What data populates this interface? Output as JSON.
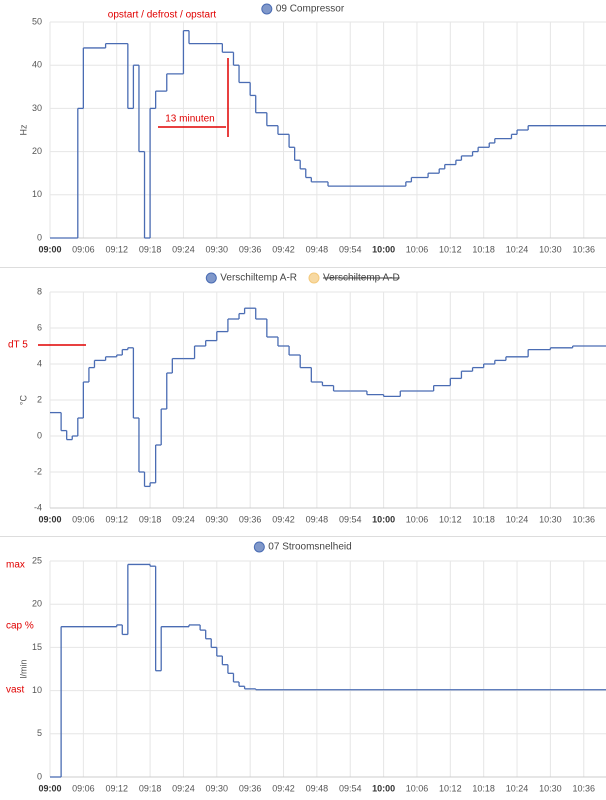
{
  "chart_data": [
    {
      "type": "line",
      "series": [
        {
          "name": "09 Compressor",
          "color": "#4a6cb3",
          "values": [
            0,
            30,
            44,
            45,
            30,
            40,
            20,
            0,
            30,
            34,
            38,
            48,
            45,
            43,
            40,
            36,
            33,
            29,
            26,
            24,
            21,
            18,
            16,
            14,
            13,
            12,
            13,
            14,
            15,
            16,
            17,
            18,
            19,
            20,
            21,
            22,
            23,
            24,
            25,
            26
          ]
        }
      ],
      "x": [
        "09:00",
        "09:05",
        "09:06",
        "09:10",
        "09:14",
        "09:15",
        "09:16",
        "09:17",
        "09:18",
        "09:19",
        "09:21",
        "09:24",
        "09:25",
        "09:31",
        "09:33",
        "09:34",
        "09:36",
        "09:37",
        "09:39",
        "09:41",
        "09:43",
        "09:44",
        "09:45",
        "09:46",
        "09:47",
        "09:50",
        "10:04",
        "10:05",
        "10:08",
        "10:10",
        "10:11",
        "10:13",
        "10:14",
        "10:16",
        "10:17",
        "10:19",
        "10:20",
        "10:23",
        "10:24",
        "10:26"
      ],
      "xlim": [
        "09:00",
        "10:40"
      ],
      "xticks": [
        "09:00",
        "09:06",
        "09:12",
        "09:18",
        "09:24",
        "09:30",
        "09:36",
        "09:42",
        "09:48",
        "09:54",
        "10:00",
        "10:06",
        "10:12",
        "10:18",
        "10:24",
        "10:30",
        "10:36"
      ],
      "y_label": "Hz",
      "ylim": [
        0,
        50
      ],
      "yticks": [
        0,
        10,
        20,
        30,
        40,
        50
      ],
      "grid": true,
      "annotations": [
        "opstart / defrost / opstart",
        "13 minuten"
      ]
    },
    {
      "type": "line",
      "series": [
        {
          "name": "Verschiltemp A-R",
          "color": "#4a6cb3",
          "values": [
            1.3,
            0.3,
            -0.2,
            0.0,
            1.0,
            3.0,
            3.8,
            4.2,
            4.4,
            4.5,
            4.8,
            4.9,
            1.0,
            -2.0,
            -2.8,
            -2.6,
            -0.5,
            1.5,
            3.5,
            4.3,
            4.3,
            5.0,
            5.3,
            5.8,
            6.5,
            6.8,
            7.1,
            6.5,
            5.5,
            5.0,
            4.5,
            3.8,
            3.0,
            2.8,
            2.5,
            2.5,
            2.3,
            2.2,
            2.5,
            2.5,
            2.8,
            3.2,
            3.6,
            3.8,
            4.0,
            4.2,
            4.4,
            4.8,
            4.9,
            5.0
          ]
        },
        {
          "name": "Verschiltemp A-D",
          "color": "#f4c97b",
          "hidden": true,
          "values": [
            null,
            null,
            null,
            null,
            null,
            null,
            null,
            null,
            null,
            null,
            null,
            null,
            null,
            null,
            null,
            null,
            null,
            null,
            null,
            null,
            null,
            null,
            null,
            null,
            null,
            null,
            null,
            null,
            null,
            null,
            null,
            null,
            null,
            null,
            null,
            null,
            null,
            null,
            null,
            null,
            null,
            null,
            null,
            null,
            null,
            null,
            null,
            null,
            null,
            null
          ]
        }
      ],
      "x": [
        "09:00",
        "09:02",
        "09:03",
        "09:04",
        "09:05",
        "09:06",
        "09:07",
        "09:08",
        "09:10",
        "09:12",
        "09:13",
        "09:14",
        "09:15",
        "09:16",
        "09:17",
        "09:18",
        "09:19",
        "09:20",
        "09:21",
        "09:22",
        "09:24",
        "09:26",
        "09:28",
        "09:30",
        "09:32",
        "09:34",
        "09:35",
        "09:37",
        "09:39",
        "09:41",
        "09:43",
        "09:45",
        "09:47",
        "09:49",
        "09:51",
        "09:54",
        "09:57",
        "10:00",
        "10:03",
        "10:06",
        "10:09",
        "10:12",
        "10:14",
        "10:16",
        "10:18",
        "10:20",
        "10:22",
        "10:26",
        "10:30",
        "10:34"
      ],
      "xlim": [
        "09:00",
        "10:40"
      ],
      "xticks": [
        "09:00",
        "09:06",
        "09:12",
        "09:18",
        "09:24",
        "09:30",
        "09:36",
        "09:42",
        "09:48",
        "09:54",
        "10:00",
        "10:06",
        "10:12",
        "10:18",
        "10:24",
        "10:30",
        "10:36"
      ],
      "y_label": "°C",
      "ylim": [
        -4,
        8
      ],
      "yticks": [
        -4,
        -2,
        0,
        2,
        4,
        6,
        8
      ],
      "grid": true,
      "annotations": [
        "dT 5"
      ]
    },
    {
      "type": "line",
      "series": [
        {
          "name": "07 Stroomsnelheid",
          "color": "#4a6cb3",
          "values": [
            0,
            17.4,
            17.6,
            16.5,
            24.6,
            24.4,
            12.3,
            17.4,
            17.6,
            17.0,
            16.0,
            15.0,
            14.0,
            13.0,
            12.0,
            11.0,
            10.5,
            10.2,
            10.1
          ]
        }
      ],
      "x": [
        "09:00",
        "09:02",
        "09:12",
        "09:13",
        "09:14",
        "09:18",
        "09:19",
        "09:20",
        "09:25",
        "09:27",
        "09:28",
        "09:29",
        "09:30",
        "09:31",
        "09:32",
        "09:33",
        "09:34",
        "09:35",
        "09:37"
      ],
      "xlim": [
        "09:00",
        "10:40"
      ],
      "xticks": [
        "09:00",
        "09:06",
        "09:12",
        "09:18",
        "09:24",
        "09:30",
        "09:36",
        "09:42",
        "09:48",
        "09:54",
        "10:00",
        "10:06",
        "10:12",
        "10:18",
        "10:24",
        "10:30",
        "10:36"
      ],
      "y_label": "l/min",
      "ylim": [
        0,
        25
      ],
      "yticks": [
        0,
        5,
        10,
        15,
        20,
        25
      ],
      "grid": true,
      "annotations": [
        "max",
        "cap %",
        "vast"
      ]
    }
  ]
}
